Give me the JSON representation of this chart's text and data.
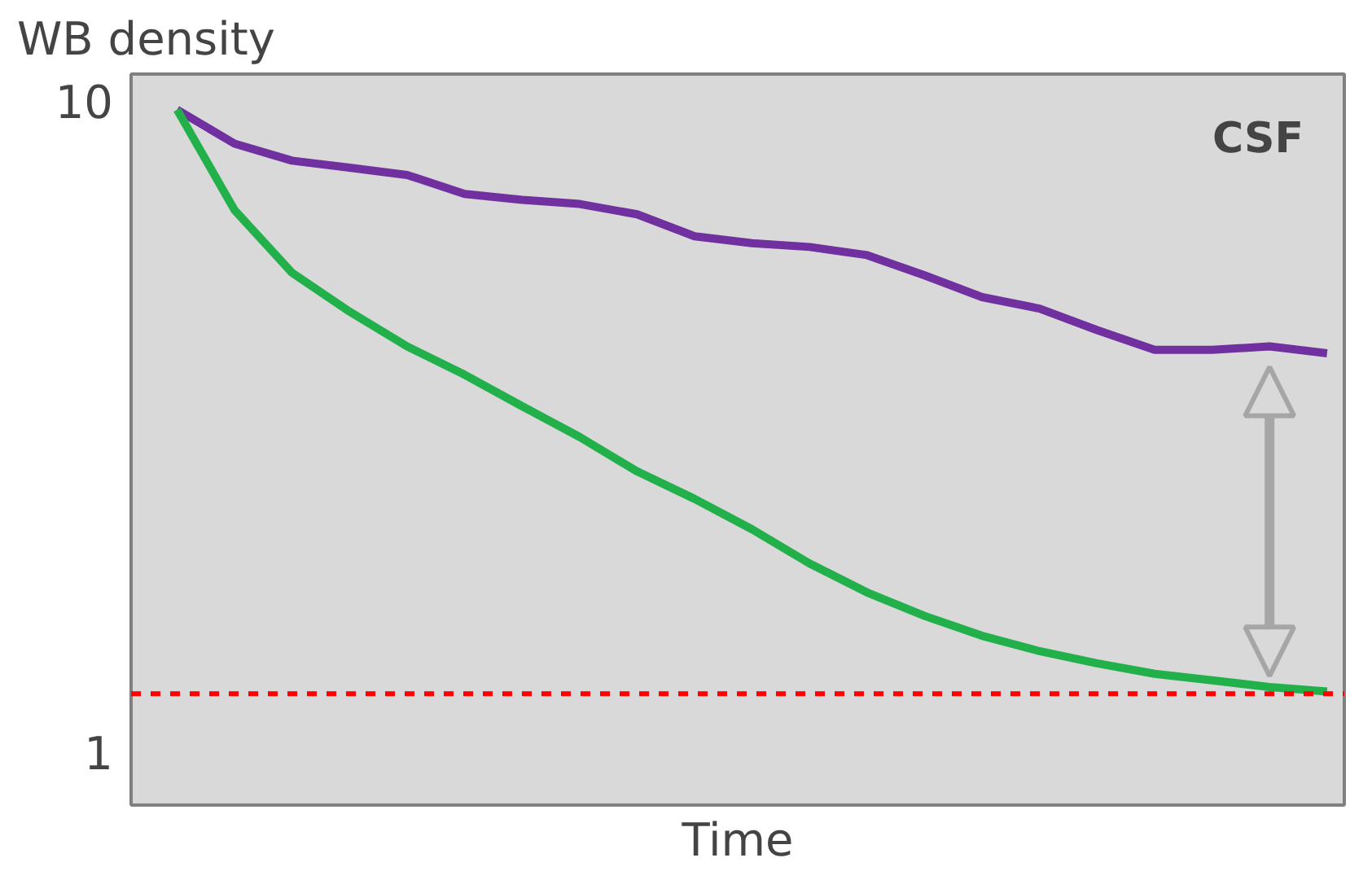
{
  "chart_data": {
    "type": "line",
    "title": "WB density",
    "xlabel": "Time",
    "annotations": [
      "CSF"
    ],
    "categories": [
      null,
      null,
      null,
      null,
      null,
      null,
      null,
      null,
      null,
      null,
      null,
      null,
      null,
      null,
      null,
      null,
      null,
      null,
      null,
      null,
      null
    ],
    "series": [
      {
        "color": "#7030a0",
        "values": [
          9.7,
          8.6,
          8.1,
          7.9,
          7.7,
          7.2,
          7.05,
          6.95,
          6.7,
          6.2,
          6.05,
          5.97,
          5.8,
          5.4,
          5.0,
          4.8,
          4.45,
          4.15,
          4.15,
          4.2,
          4.1
        ]
      },
      {
        "color": "#22b04a",
        "values": [
          9.7,
          6.8,
          5.45,
          4.75,
          4.2,
          3.8,
          3.4,
          3.05,
          2.7,
          2.45,
          2.2,
          1.95,
          1.76,
          1.62,
          1.51,
          1.43,
          1.37,
          1.32,
          1.29,
          1.26,
          1.24
        ]
      }
    ],
    "log": "y",
    "ylim": [
      0.83,
      11
    ],
    "yticks": [
      1,
      10
    ],
    "tick_labels": "y",
    "grid": false,
    "line_style": "solid",
    "marker": "none",
    "ref_lines": [
      {
        "axis": "y",
        "value": 1.23,
        "color": "#ff0000",
        "line_style": "dashed"
      }
    ]
  }
}
